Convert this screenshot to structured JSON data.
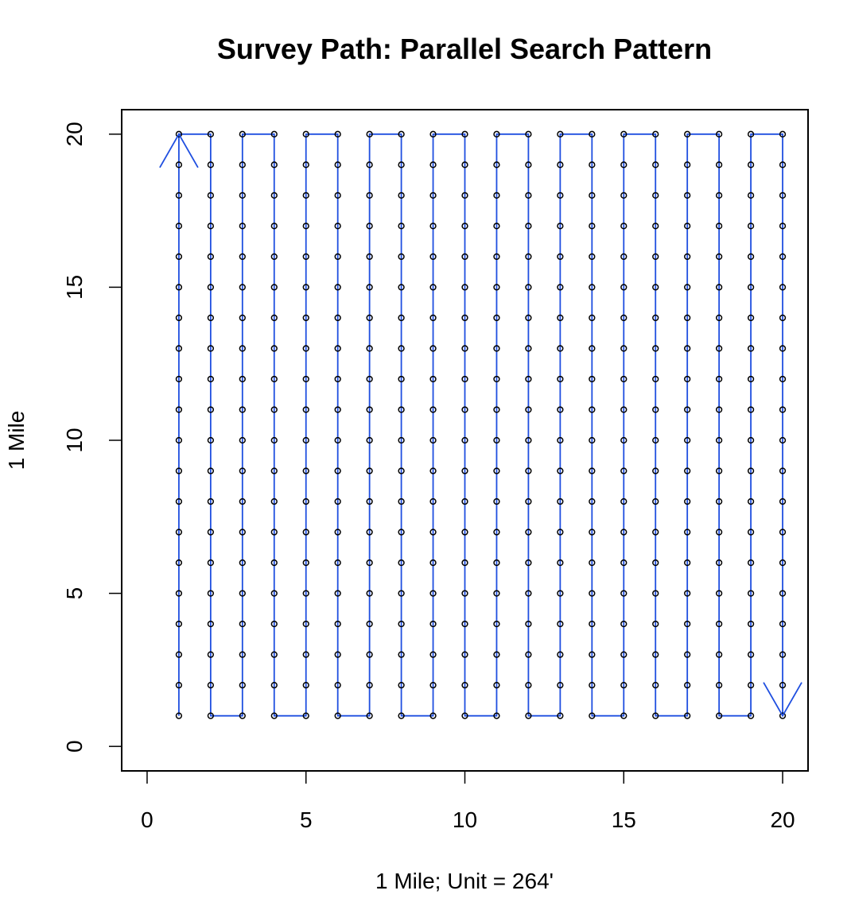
{
  "chart_data": {
    "type": "scatter",
    "title": "Survey Path: Parallel Search Pattern",
    "xlabel": "1 Mile; Unit = 264'",
    "ylabel": "1 Mile",
    "xlim": [
      -0.8,
      20.8
    ],
    "ylim": [
      -0.8,
      20.8
    ],
    "xticks": [
      "0",
      "5",
      "10",
      "15",
      "20"
    ],
    "yticks": [
      "0",
      "5",
      "10",
      "15",
      "20"
    ],
    "grid": false,
    "legend": "none",
    "points": {
      "x_range": [
        1,
        20
      ],
      "y_range": [
        1,
        20
      ],
      "step": 1,
      "color": "#000000"
    },
    "path": {
      "color": "#1f4fe0",
      "pattern": "serpentine",
      "start": [
        1,
        1
      ],
      "end": [
        20,
        1
      ],
      "first_direction": "up",
      "arrows": [
        {
          "at": [
            1,
            20
          ],
          "direction": "up"
        },
        {
          "at": [
            20,
            1
          ],
          "direction": "down"
        }
      ]
    }
  }
}
